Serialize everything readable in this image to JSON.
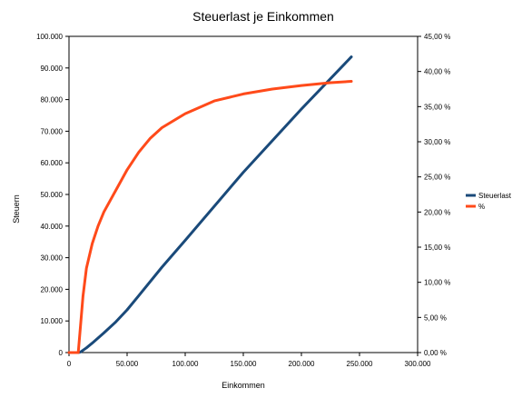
{
  "chart_data": {
    "type": "line",
    "title": "Steuerlast je Einkommen",
    "xlabel": "Einkommen",
    "ylabel": "Steuern",
    "y2label": "",
    "xlim": [
      0,
      300000
    ],
    "ylim": [
      0,
      100000
    ],
    "y2lim": [
      0,
      45
    ],
    "grid": false,
    "legend_position": "right",
    "x_ticks": [
      "0",
      "50.000",
      "100.000",
      "150.000",
      "200.000",
      "250.000",
      "300.000"
    ],
    "y_ticks": [
      "0",
      "10.000",
      "20.000",
      "30.000",
      "40.000",
      "50.000",
      "60.000",
      "70.000",
      "80.000",
      "90.000",
      "100.000"
    ],
    "y2_ticks": [
      "0,00 %",
      "5,00 %",
      "10,00 %",
      "15,00 %",
      "20,00 %",
      "25,00 %",
      "30,00 %",
      "35,00 %",
      "40,00 %",
      "45,00 %"
    ],
    "series": [
      {
        "name": "Steuerlast",
        "axis": "left",
        "color": "#1a4a7a",
        "x": [
          0,
          8000,
          10000,
          15000,
          20000,
          30000,
          40000,
          50000,
          60000,
          80000,
          100000,
          150000,
          200000,
          243000
        ],
        "y": [
          0,
          0,
          200,
          1500,
          3000,
          6200,
          9600,
          13500,
          18000,
          27000,
          35500,
          57000,
          77000,
          93500
        ]
      },
      {
        "name": "%",
        "axis": "right",
        "color": "#ff4a1a",
        "x": [
          0,
          8000,
          10000,
          12000,
          15000,
          20000,
          25000,
          30000,
          40000,
          50000,
          60000,
          70000,
          80000,
          100000,
          125000,
          150000,
          175000,
          200000,
          225000,
          243000
        ],
        "y": [
          0,
          0,
          4,
          8,
          12,
          15.5,
          18,
          20,
          23,
          26,
          28.5,
          30.5,
          32,
          34,
          35.8,
          36.8,
          37.5,
          38,
          38.4,
          38.6
        ]
      }
    ]
  }
}
